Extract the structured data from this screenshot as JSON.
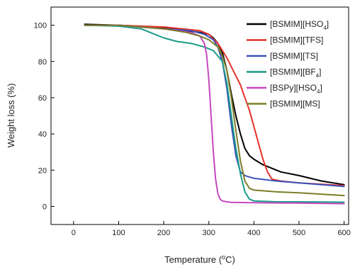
{
  "chart_data": {
    "type": "line",
    "xlabel": "Temperature (°C)",
    "xlabel_parts": {
      "prefix": "Temperature (",
      "sup": "o",
      "suffix": "C)"
    },
    "ylabel": "Weight loss (%)",
    "xlim": [
      -50,
      610
    ],
    "ylim": [
      -10,
      110
    ],
    "xticks": [
      0,
      100,
      200,
      300,
      400,
      500,
      600
    ],
    "yticks": [
      0,
      20,
      40,
      60,
      80,
      100
    ],
    "grid": false,
    "legend_position": "top-right",
    "series": [
      {
        "name": "[BSMIM][HSO4]",
        "label": {
          "base": "[BSMIM][HSO",
          "sub": "4",
          "tail": "]"
        },
        "color": "#000000",
        "x": [
          25,
          100,
          200,
          250,
          280,
          300,
          310,
          320,
          330,
          340,
          350,
          360,
          370,
          380,
          390,
          400,
          420,
          440,
          460,
          500,
          550,
          600
        ],
        "y": [
          100.5,
          100,
          98.5,
          97,
          96,
          95,
          93,
          90,
          85,
          75,
          62,
          50,
          40,
          32,
          28,
          26,
          23,
          21,
          19,
          17,
          14,
          12
        ]
      },
      {
        "name": "[BSMIM][TFS]",
        "label": {
          "base": "[BSMIM][TFS]",
          "sub": "",
          "tail": ""
        },
        "color": "#e8312b",
        "x": [
          25,
          100,
          200,
          280,
          300,
          320,
          330,
          340,
          350,
          360,
          370,
          380,
          390,
          400,
          410,
          420,
          430,
          440,
          460,
          500,
          600
        ],
        "y": [
          100,
          100,
          99,
          97,
          95,
          90,
          86,
          82,
          77,
          72,
          67,
          60,
          53,
          44,
          35,
          26,
          19,
          15,
          14,
          13,
          11.5
        ]
      },
      {
        "name": "[BSMIM][TS]",
        "label": {
          "base": "[BSMIM][TS]",
          "sub": "",
          "tail": ""
        },
        "color": "#3a52b8",
        "x": [
          25,
          100,
          200,
          260,
          290,
          310,
          320,
          330,
          340,
          350,
          360,
          370,
          380,
          400,
          450,
          500,
          600
        ],
        "y": [
          100,
          100,
          98,
          97,
          95,
          92,
          88,
          80,
          65,
          45,
          28,
          19,
          17,
          15.5,
          14,
          13,
          11
        ]
      },
      {
        "name": "[BSMIM][BF4]",
        "label": {
          "base": "[BSMIM][BF",
          "sub": "4",
          "tail": "]"
        },
        "color": "#1b9a88",
        "x": [
          25,
          100,
          150,
          180,
          200,
          230,
          260,
          290,
          310,
          330,
          340,
          350,
          360,
          370,
          380,
          390,
          400,
          450,
          500,
          600
        ],
        "y": [
          100,
          99.5,
          98,
          95,
          93,
          91,
          90,
          88,
          86,
          80,
          68,
          50,
          32,
          18,
          8,
          4,
          3,
          2.5,
          2.5,
          2.3
        ]
      },
      {
        "name": "[BSPy][HSO4]",
        "label": {
          "base": "[BSPy][HSO",
          "sub": "4",
          "tail": "]"
        },
        "color": "#c648c0",
        "x": [
          25,
          100,
          200,
          260,
          280,
          290,
          295,
          300,
          305,
          310,
          315,
          320,
          325,
          330,
          340,
          350,
          400,
          500,
          600
        ],
        "y": [
          100,
          100,
          98,
          96,
          94,
          90,
          84,
          70,
          50,
          30,
          15,
          7,
          4,
          3,
          2.5,
          2.2,
          2,
          1.8,
          1.5
        ]
      },
      {
        "name": "[BSMIM][MS]",
        "label": {
          "base": "[BSMIM][MS]",
          "sub": "",
          "tail": ""
        },
        "color": "#7b7e27",
        "x": [
          25,
          100,
          200,
          250,
          280,
          300,
          320,
          330,
          340,
          350,
          360,
          370,
          380,
          390,
          400,
          450,
          500,
          600
        ],
        "y": [
          100,
          100,
          98,
          96,
          94,
          92,
          88,
          83,
          75,
          60,
          42,
          25,
          14,
          10,
          9,
          8,
          7.5,
          6
        ]
      }
    ]
  }
}
